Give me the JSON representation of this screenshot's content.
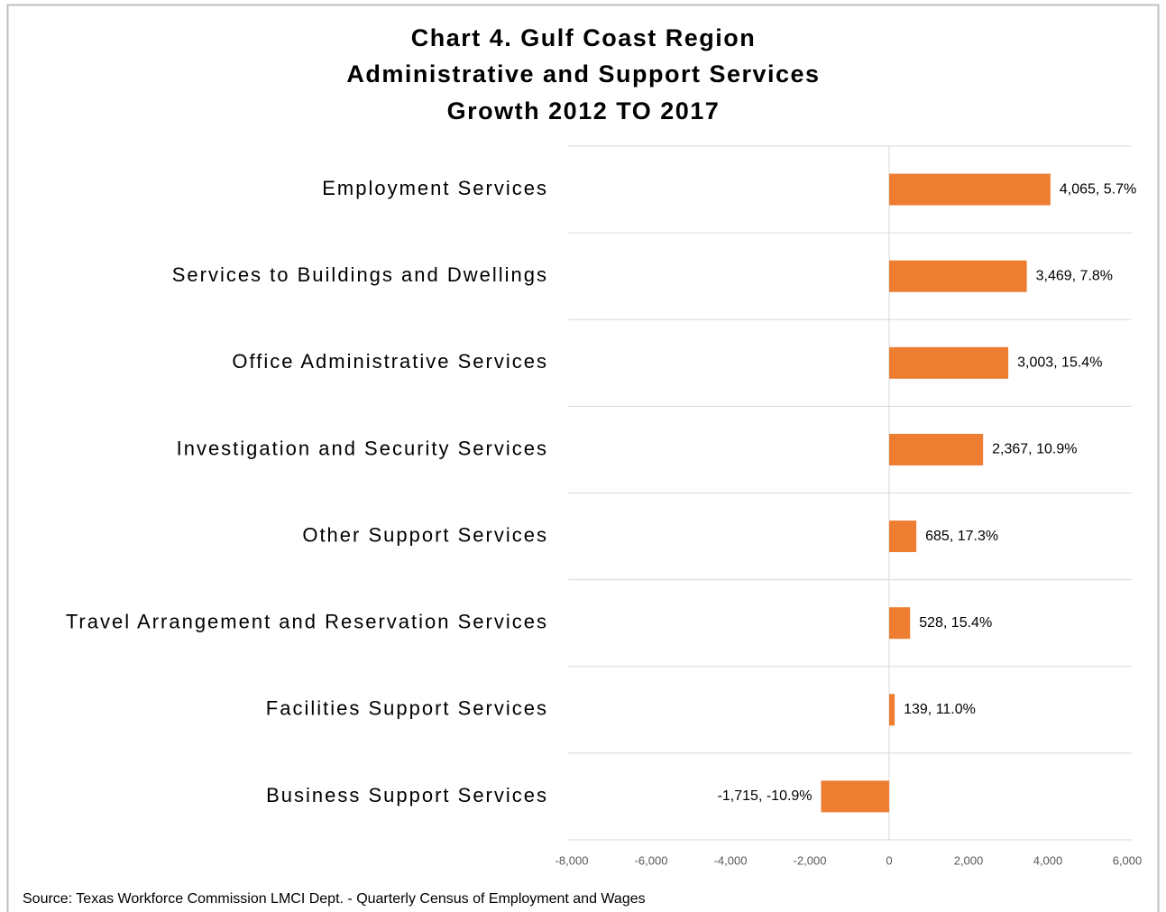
{
  "chart_data": {
    "type": "barh",
    "title": [
      "Chart 4. Gulf Coast Region",
      "Administrative and Support Services",
      "Growth 2012 TO 2017"
    ],
    "categories": [
      "Employment Services",
      "Services to Buildings and Dwellings",
      "Office Administrative Services",
      "Investigation and Security Services",
      "Other Support Services",
      "Travel Arrangement and Reservation Services",
      "Facilities Support Services",
      "Business Support Services"
    ],
    "values": [
      4065,
      3469,
      3003,
      2367,
      685,
      528,
      139,
      -1715
    ],
    "value_labels": [
      "4,065, 5.7%",
      "3,469, 7.8%",
      "3,003, 15.4%",
      "2,367, 10.9%",
      "685, 17.3%",
      "528, 15.4%",
      "139, 11.0%",
      "-1,715, -10.9%"
    ],
    "color": "#ed7d31",
    "xlim": [
      -8000,
      6000
    ],
    "xticks": [
      {
        "value": -8000,
        "label": "-8,000"
      },
      {
        "value": -6000,
        "label": "-6,000"
      },
      {
        "value": -4000,
        "label": "-4,000"
      },
      {
        "value": -2000,
        "label": "-2,000"
      },
      0,
      {
        "value": 2000,
        "label": "2,000"
      },
      {
        "value": 4000,
        "label": "4,000"
      },
      {
        "value": 6000,
        "label": "6,000"
      }
    ],
    "grid": false,
    "source": "Source: Texas Workforce Commission LMCI Dept. - Quarterly Census of Employment and Wages"
  }
}
